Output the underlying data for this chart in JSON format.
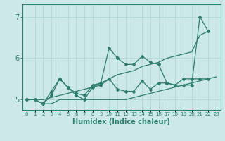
{
  "xlabel": "Humidex (Indice chaleur)",
  "x_values": [
    0,
    1,
    2,
    3,
    4,
    5,
    6,
    7,
    8,
    9,
    10,
    11,
    12,
    13,
    14,
    15,
    16,
    17,
    18,
    19,
    20,
    21,
    22,
    23
  ],
  "line_smooth": [
    5.0,
    5.0,
    5.0,
    5.05,
    5.1,
    5.15,
    5.2,
    5.25,
    5.3,
    5.4,
    5.5,
    5.6,
    5.65,
    5.7,
    5.8,
    5.85,
    5.9,
    6.0,
    6.05,
    6.1,
    6.15,
    6.55,
    6.65,
    null
  ],
  "line_flat": [
    5.0,
    5.0,
    4.9,
    4.9,
    5.0,
    5.0,
    5.0,
    5.0,
    5.0,
    5.0,
    5.0,
    5.0,
    5.0,
    5.05,
    5.1,
    5.15,
    5.2,
    5.25,
    5.3,
    5.35,
    5.4,
    5.45,
    5.5,
    5.55
  ],
  "line_zigzag1": [
    5.0,
    5.0,
    4.9,
    5.2,
    5.5,
    5.3,
    5.15,
    5.1,
    5.35,
    5.4,
    6.25,
    6.0,
    5.85,
    5.85,
    6.05,
    5.9,
    5.85,
    5.4,
    5.35,
    5.35,
    5.35,
    7.0,
    6.65,
    null
  ],
  "line_zigzag2": [
    5.0,
    5.0,
    4.9,
    5.1,
    5.5,
    5.3,
    5.1,
    5.0,
    5.3,
    5.35,
    5.5,
    5.25,
    5.2,
    5.2,
    5.45,
    5.25,
    5.4,
    5.4,
    5.35,
    5.5,
    5.5,
    5.5,
    5.5,
    null
  ],
  "line_color": "#2e7d6e",
  "bg_color": "#cce8e8",
  "grid_color": "#aad4d4",
  "ylim": [
    4.75,
    7.3
  ],
  "yticks": [
    5,
    6,
    7
  ],
  "xlim": [
    -0.5,
    23.5
  ]
}
